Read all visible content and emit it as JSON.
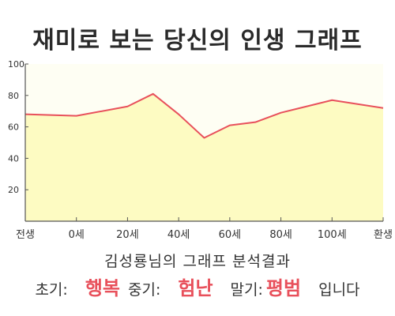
{
  "title": "재미로 보는 당신의 인생 그래프",
  "summary": "김성룡님의 그래프 분석결과",
  "result": {
    "early_label": "초기:",
    "early_value": "행복",
    "middle_label": "중기:",
    "middle_value": "험난",
    "late_label": "말기:",
    "late_value": "평범",
    "suffix": "입니다"
  },
  "colors": {
    "fill": "#fdfbc2",
    "line": "#e8505b",
    "plot_background": "#fefef3",
    "axis": "#555555",
    "highlight": "#e8505b"
  },
  "chart_data": {
    "type": "area",
    "title": "",
    "xlabel": "",
    "ylabel": "",
    "x_tick_labels": [
      "전생",
      "0세",
      "20세",
      "40세",
      "60세",
      "80세",
      "100세",
      "환생"
    ],
    "ylim": [
      0,
      100
    ],
    "y_ticks": [
      20,
      40,
      60,
      80,
      100
    ],
    "grid": false,
    "series": [
      {
        "x": [
          -20,
          0,
          20,
          30,
          40,
          50,
          60,
          70,
          80,
          90,
          100,
          120
        ],
        "values": [
          68,
          67,
          73,
          81,
          68,
          53,
          61,
          63,
          69,
          73,
          77,
          72
        ]
      }
    ]
  }
}
